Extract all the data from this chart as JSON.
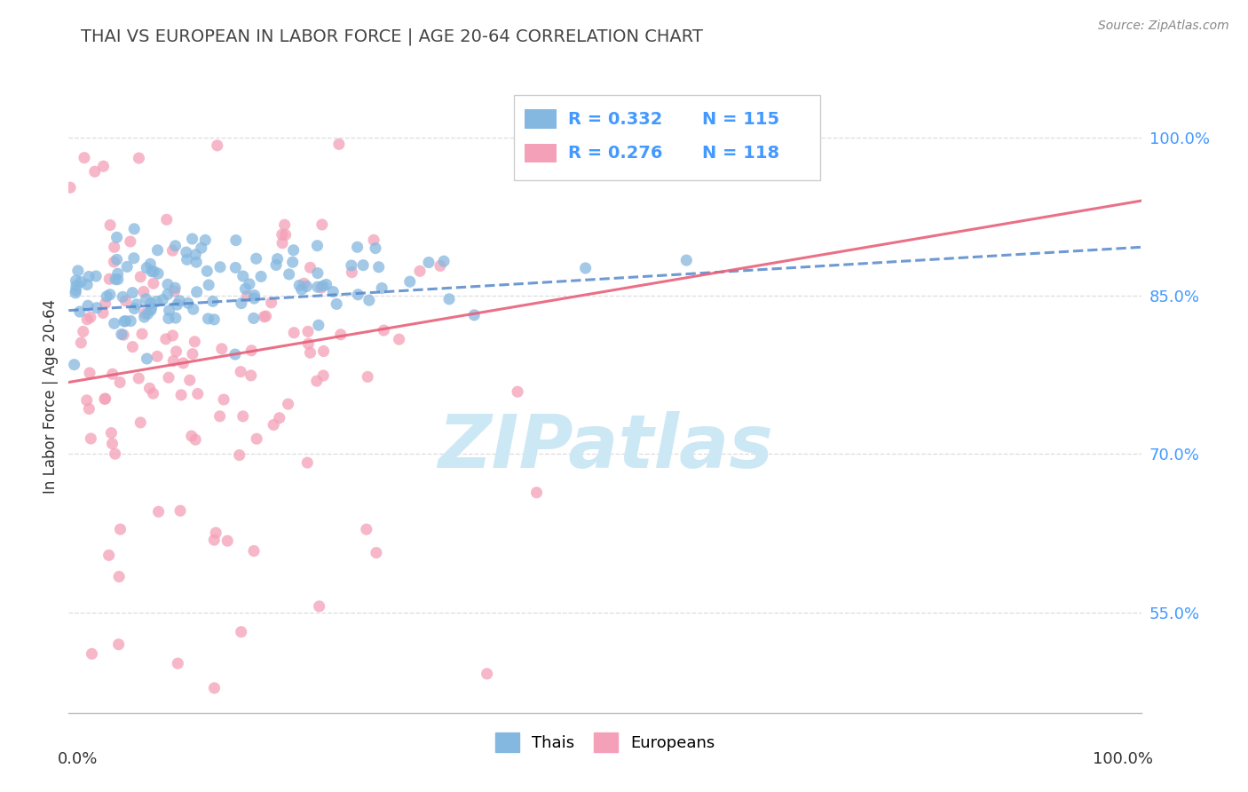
{
  "title": "THAI VS EUROPEAN IN LABOR FORCE | AGE 20-64 CORRELATION CHART",
  "source_text": "Source: ZipAtlas.com",
  "ylabel": "In Labor Force | Age 20-64",
  "ytick_vals": [
    0.55,
    0.7,
    0.85,
    1.0
  ],
  "ytick_labels": [
    "55.0%",
    "70.0%",
    "85.0%",
    "100.0%"
  ],
  "thai_color": "#85b8e0",
  "european_color": "#f4a0b8",
  "thai_line_color": "#5588cc",
  "european_line_color": "#e8607a",
  "watermark_color": "#cde8f5",
  "background_color": "#ffffff",
  "grid_color": "#dddddd",
  "ytick_color": "#4499ff",
  "title_color": "#444444",
  "source_color": "#888888",
  "legend_r1": "R = 0.332",
  "legend_n1": "N = 115",
  "legend_r2": "R = 0.276",
  "legend_n2": "N = 118",
  "legend_label1": "Thais",
  "legend_label2": "Europeans"
}
